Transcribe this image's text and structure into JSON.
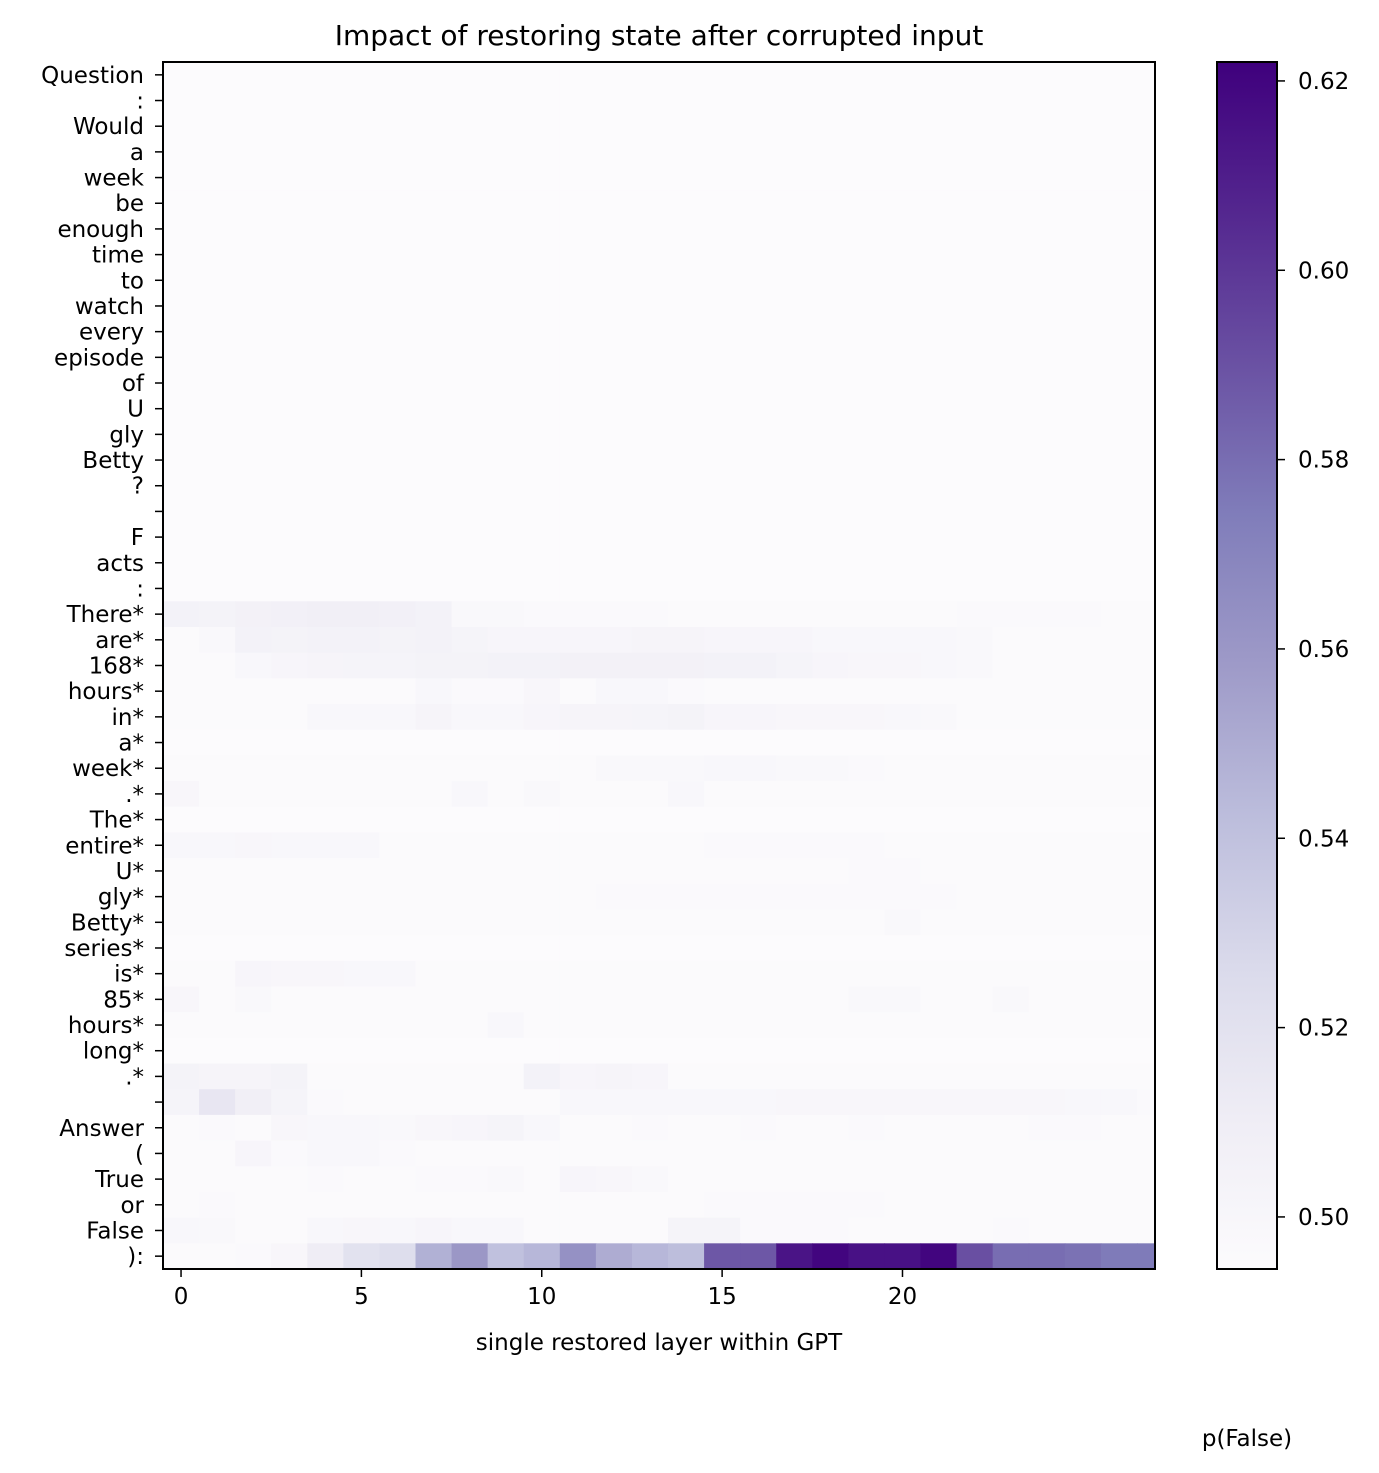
{
  "chart_data": {
    "type": "heatmap",
    "title": "Impact of restoring state after corrupted input",
    "xlabel": "single restored layer within GPT",
    "colorbar_label": "p(False)",
    "colormap": "Purples",
    "x_layers": 28,
    "x_ticks": [
      0,
      5,
      10,
      15,
      20
    ],
    "colorbar_range": [
      0.4945,
      0.622
    ],
    "colorbar_ticks": [
      "0.50",
      "0.52",
      "0.54",
      "0.56",
      "0.58",
      "0.60",
      "0.62"
    ],
    "colorbar_tick_values": [
      0.5,
      0.52,
      0.54,
      0.56,
      0.58,
      0.6,
      0.62
    ],
    "tokens": [
      "Question",
      ":",
      "Would",
      "a",
      "week",
      "be",
      "enough",
      "time",
      "to",
      "watch",
      "every",
      "episode",
      "of",
      "U",
      "gly",
      "Betty",
      "?",
      "",
      "F",
      "acts",
      ":",
      "There*",
      "are*",
      "168*",
      "hours*",
      "in*",
      "a*",
      "week*",
      ".*",
      "The*",
      "entire*",
      "U*",
      "gly*",
      "Betty*",
      "series*",
      "is*",
      "85*",
      "hours*",
      "long*",
      ".*",
      "",
      "Answer",
      "(",
      "True",
      "or",
      "False",
      "):"
    ],
    "default_value": 0.495,
    "nonbackground_rows": {
      "21": [
        0.505,
        0.504,
        0.506,
        0.507,
        0.508,
        0.508,
        0.507,
        0.505,
        0.498,
        0.498,
        0.497,
        0.497,
        0.497,
        0.497,
        0.496,
        0.496,
        0.496,
        0.496,
        0.496,
        0.496,
        0.496,
        0.496,
        0.497,
        0.497,
        0.497,
        0.497,
        0.496,
        0.496
      ],
      "22": [
        0.496,
        0.498,
        0.505,
        0.504,
        0.505,
        0.505,
        0.504,
        0.505,
        0.503,
        0.501,
        0.501,
        0.501,
        0.501,
        0.502,
        0.502,
        0.501,
        0.501,
        0.501,
        0.499,
        0.499,
        0.499,
        0.499,
        0.498,
        0.496,
        0.496,
        0.496,
        0.496,
        0.496
      ],
      "23": [
        0.496,
        0.496,
        0.499,
        0.501,
        0.502,
        0.503,
        0.503,
        0.504,
        0.504,
        0.505,
        0.505,
        0.506,
        0.506,
        0.506,
        0.506,
        0.505,
        0.505,
        0.503,
        0.501,
        0.5,
        0.5,
        0.499,
        0.498,
        0.496,
        0.496,
        0.496,
        0.496,
        0.496
      ],
      "24": [
        0.496,
        0.496,
        0.496,
        0.496,
        0.496,
        0.496,
        0.496,
        0.499,
        0.497,
        0.497,
        0.5,
        0.496,
        0.499,
        0.499,
        0.497,
        0.496,
        0.496,
        0.496,
        0.496,
        0.496,
        0.496,
        0.496,
        0.496,
        0.496,
        0.496,
        0.496,
        0.496,
        0.496
      ],
      "25": [
        0.496,
        0.496,
        0.496,
        0.496,
        0.499,
        0.499,
        0.499,
        0.502,
        0.499,
        0.499,
        0.501,
        0.502,
        0.502,
        0.503,
        0.504,
        0.501,
        0.501,
        0.5,
        0.5,
        0.5,
        0.499,
        0.498,
        0.496,
        0.496,
        0.496,
        0.496,
        0.496,
        0.496
      ],
      "27": [
        0.496,
        0.496,
        0.496,
        0.496,
        0.496,
        0.496,
        0.496,
        0.496,
        0.496,
        0.496,
        0.496,
        0.496,
        0.498,
        0.498,
        0.498,
        0.499,
        0.499,
        0.498,
        0.498,
        0.497,
        0.496,
        0.496,
        0.496,
        0.496,
        0.496,
        0.496,
        0.496,
        0.496
      ],
      "28": [
        0.5,
        0.496,
        0.496,
        0.496,
        0.496,
        0.496,
        0.496,
        0.496,
        0.499,
        0.496,
        0.498,
        0.496,
        0.496,
        0.496,
        0.499,
        0.496,
        0.496,
        0.496,
        0.496,
        0.496,
        0.496,
        0.496,
        0.496,
        0.496,
        0.496,
        0.496,
        0.496,
        0.496
      ],
      "30": [
        0.499,
        0.499,
        0.5,
        0.499,
        0.499,
        0.499,
        0.496,
        0.496,
        0.496,
        0.496,
        0.496,
        0.496,
        0.496,
        0.496,
        0.496,
        0.497,
        0.497,
        0.497,
        0.497,
        0.497,
        0.496,
        0.496,
        0.496,
        0.496,
        0.496,
        0.496,
        0.496,
        0.496
      ],
      "31": [
        0.496,
        0.496,
        0.496,
        0.496,
        0.496,
        0.496,
        0.496,
        0.496,
        0.496,
        0.496,
        0.496,
        0.496,
        0.496,
        0.496,
        0.496,
        0.496,
        0.496,
        0.496,
        0.496,
        0.497,
        0.497,
        0.496,
        0.496,
        0.496,
        0.496,
        0.496,
        0.496,
        0.496
      ],
      "32": [
        0.496,
        0.496,
        0.496,
        0.496,
        0.496,
        0.496,
        0.496,
        0.496,
        0.496,
        0.496,
        0.496,
        0.496,
        0.497,
        0.497,
        0.497,
        0.497,
        0.497,
        0.497,
        0.497,
        0.497,
        0.497,
        0.497,
        0.496,
        0.496,
        0.496,
        0.496,
        0.496,
        0.496
      ],
      "33": [
        0.496,
        0.496,
        0.496,
        0.496,
        0.496,
        0.496,
        0.496,
        0.496,
        0.496,
        0.496,
        0.496,
        0.496,
        0.496,
        0.496,
        0.496,
        0.496,
        0.496,
        0.496,
        0.496,
        0.496,
        0.498,
        0.496,
        0.496,
        0.496,
        0.496,
        0.496,
        0.496,
        0.496
      ],
      "35": [
        0.496,
        0.496,
        0.501,
        0.5,
        0.5,
        0.499,
        0.499,
        0.496,
        0.496,
        0.496,
        0.496,
        0.496,
        0.496,
        0.496,
        0.496,
        0.496,
        0.496,
        0.496,
        0.496,
        0.496,
        0.496,
        0.496,
        0.496,
        0.496,
        0.496,
        0.496,
        0.496,
        0.496
      ],
      "36": [
        0.5,
        0.496,
        0.498,
        0.496,
        0.496,
        0.496,
        0.496,
        0.496,
        0.496,
        0.496,
        0.496,
        0.496,
        0.496,
        0.496,
        0.496,
        0.496,
        0.496,
        0.496,
        0.496,
        0.498,
        0.498,
        0.496,
        0.496,
        0.498,
        0.496,
        0.496,
        0.496,
        0.496
      ],
      "37": [
        0.496,
        0.496,
        0.496,
        0.496,
        0.496,
        0.496,
        0.496,
        0.496,
        0.496,
        0.499,
        0.496,
        0.496,
        0.496,
        0.496,
        0.496,
        0.496,
        0.496,
        0.496,
        0.496,
        0.496,
        0.496,
        0.496,
        0.496,
        0.496,
        0.496,
        0.496,
        0.496,
        0.496
      ],
      "39": [
        0.504,
        0.502,
        0.502,
        0.504,
        0.496,
        0.496,
        0.496,
        0.496,
        0.496,
        0.496,
        0.505,
        0.501,
        0.502,
        0.501,
        0.496,
        0.496,
        0.496,
        0.496,
        0.496,
        0.496,
        0.496,
        0.496,
        0.496,
        0.496,
        0.496,
        0.496,
        0.496,
        0.496
      ],
      "40": [
        0.503,
        0.516,
        0.508,
        0.503,
        0.497,
        0.496,
        0.496,
        0.496,
        0.496,
        0.496,
        0.496,
        0.499,
        0.499,
        0.499,
        0.499,
        0.499,
        0.499,
        0.5,
        0.5,
        0.5,
        0.5,
        0.5,
        0.5,
        0.5,
        0.5,
        0.499,
        0.499,
        0.497
      ],
      "41": [
        0.496,
        0.497,
        0.496,
        0.5,
        0.499,
        0.499,
        0.498,
        0.5,
        0.501,
        0.503,
        0.499,
        0.496,
        0.496,
        0.497,
        0.496,
        0.496,
        0.497,
        0.496,
        0.496,
        0.497,
        0.496,
        0.496,
        0.496,
        0.496,
        0.497,
        0.497,
        0.496,
        0.496
      ],
      "42": [
        0.496,
        0.496,
        0.501,
        0.497,
        0.499,
        0.499,
        0.497,
        0.496,
        0.496,
        0.496,
        0.496,
        0.496,
        0.496,
        0.496,
        0.496,
        0.496,
        0.496,
        0.496,
        0.496,
        0.496,
        0.496,
        0.496,
        0.496,
        0.496,
        0.496,
        0.496,
        0.496,
        0.496
      ],
      "43": [
        0.496,
        0.496,
        0.496,
        0.496,
        0.497,
        0.496,
        0.496,
        0.497,
        0.497,
        0.498,
        0.496,
        0.501,
        0.5,
        0.498,
        0.496,
        0.496,
        0.496,
        0.496,
        0.496,
        0.496,
        0.496,
        0.496,
        0.496,
        0.496,
        0.496,
        0.496,
        0.496,
        0.496
      ],
      "44": [
        0.496,
        0.497,
        0.496,
        0.496,
        0.496,
        0.496,
        0.496,
        0.496,
        0.496,
        0.496,
        0.496,
        0.496,
        0.496,
        0.496,
        0.496,
        0.497,
        0.497,
        0.497,
        0.497,
        0.497,
        0.496,
        0.496,
        0.496,
        0.496,
        0.496,
        0.496,
        0.496,
        0.496
      ],
      "45": [
        0.499,
        0.498,
        0.496,
        0.496,
        0.499,
        0.5,
        0.499,
        0.501,
        0.499,
        0.499,
        0.496,
        0.496,
        0.496,
        0.496,
        0.503,
        0.503,
        0.497,
        0.497,
        0.497,
        0.496,
        0.496,
        0.496,
        0.496,
        0.497,
        0.496,
        0.496,
        0.496,
        0.496
      ],
      "46": [
        0.496,
        0.496,
        0.497,
        0.5,
        0.51,
        0.52,
        0.523,
        0.548,
        0.56,
        0.54,
        0.545,
        0.563,
        0.55,
        0.545,
        0.542,
        0.588,
        0.588,
        0.614,
        0.62,
        0.615,
        0.615,
        0.62,
        0.591,
        0.58,
        0.58,
        0.578,
        0.575,
        0.575
      ]
    }
  }
}
